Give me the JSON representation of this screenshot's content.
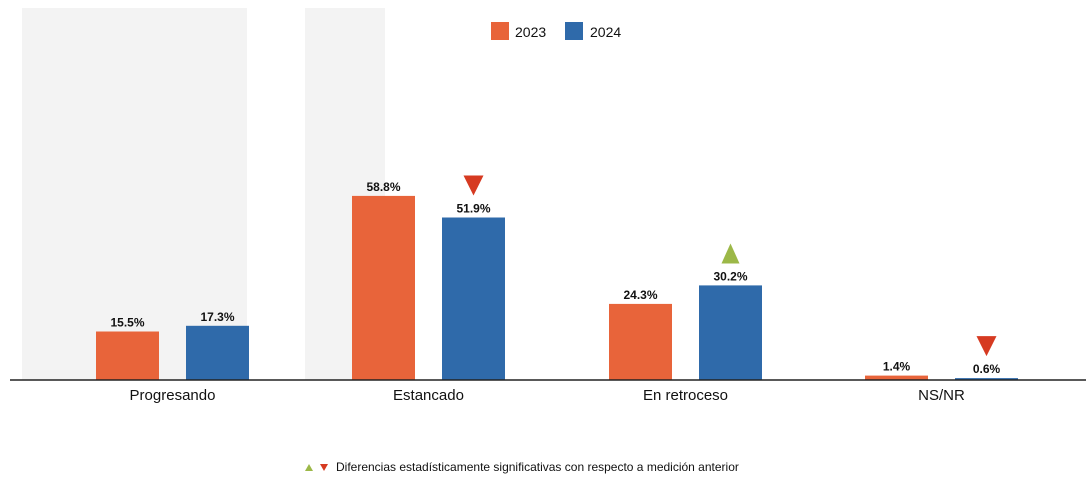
{
  "chart_data": {
    "type": "bar",
    "categories": [
      "Progresando",
      "Estancado",
      "En retroceso",
      "NS/NR"
    ],
    "series": [
      {
        "name": "2023",
        "values": [
          15.5,
          58.8,
          24.3,
          1.4
        ],
        "labels": [
          "15.5%",
          "58.8%",
          "24.3%",
          "1.4%"
        ],
        "color": "#e8643a"
      },
      {
        "name": "2024",
        "values": [
          17.3,
          51.9,
          30.2,
          0.6
        ],
        "labels": [
          "17.3%",
          "51.9%",
          "30.2%",
          "0.6%"
        ],
        "color": "#2f6aaa"
      }
    ],
    "significance_2024": [
      "none",
      "down",
      "up",
      "down"
    ],
    "up_color": "#9cb848",
    "down_color": "#d63a21",
    "ylim": [
      0,
      70
    ],
    "grid": false,
    "legend_position": "top-center",
    "title": "",
    "xlabel": "",
    "ylabel": ""
  },
  "legend": {
    "items": [
      "2023",
      "2024"
    ]
  },
  "footnote": {
    "text": "Diferencias estadísticamente significativas con respecto a medición anterior"
  }
}
